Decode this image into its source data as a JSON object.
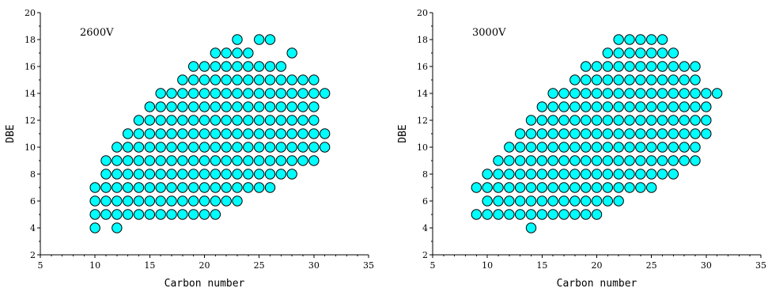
{
  "chart_data": [
    {
      "type": "scatter",
      "panel_label": "2600V",
      "xlabel": "Carbon number",
      "ylabel": "DBE",
      "xlim": [
        5,
        35
      ],
      "ylim": [
        2,
        20
      ],
      "x_ticks": [
        5,
        10,
        15,
        20,
        25,
        30,
        35
      ],
      "y_ticks": [
        2,
        4,
        6,
        8,
        10,
        12,
        14,
        16,
        18,
        20
      ],
      "marker_color": "#00FFFF",
      "rows": [
        {
          "y": 4,
          "x": [
            10,
            12
          ]
        },
        {
          "y": 5,
          "x": [
            10,
            11,
            12,
            13,
            14,
            15,
            16,
            17,
            18,
            19,
            20,
            21
          ]
        },
        {
          "y": 6,
          "x": [
            10,
            11,
            12,
            13,
            14,
            15,
            16,
            17,
            18,
            19,
            20,
            21,
            22,
            23
          ]
        },
        {
          "y": 7,
          "x": [
            10,
            11,
            12,
            13,
            14,
            15,
            16,
            17,
            18,
            19,
            20,
            21,
            22,
            23,
            24,
            25,
            26
          ]
        },
        {
          "y": 8,
          "x": [
            11,
            12,
            13,
            14,
            15,
            16,
            17,
            18,
            19,
            20,
            21,
            22,
            23,
            24,
            25,
            26,
            27,
            28
          ]
        },
        {
          "y": 9,
          "x": [
            11,
            12,
            13,
            14,
            15,
            16,
            17,
            18,
            19,
            20,
            21,
            22,
            23,
            24,
            25,
            26,
            27,
            28,
            29,
            30
          ]
        },
        {
          "y": 10,
          "x": [
            12,
            13,
            14,
            15,
            16,
            17,
            18,
            19,
            20,
            21,
            22,
            23,
            24,
            25,
            26,
            27,
            28,
            29,
            30,
            31
          ]
        },
        {
          "y": 11,
          "x": [
            13,
            14,
            15,
            16,
            17,
            18,
            19,
            20,
            21,
            22,
            23,
            24,
            25,
            26,
            27,
            28,
            29,
            30,
            31
          ]
        },
        {
          "y": 12,
          "x": [
            14,
            15,
            16,
            17,
            18,
            19,
            20,
            21,
            22,
            23,
            24,
            25,
            26,
            27,
            28,
            29,
            30
          ]
        },
        {
          "y": 13,
          "x": [
            15,
            16,
            17,
            18,
            19,
            20,
            21,
            22,
            23,
            24,
            25,
            26,
            27,
            28,
            29,
            30
          ]
        },
        {
          "y": 14,
          "x": [
            16,
            17,
            18,
            19,
            20,
            21,
            22,
            23,
            24,
            25,
            26,
            27,
            28,
            29,
            30,
            31
          ]
        },
        {
          "y": 15,
          "x": [
            18,
            19,
            20,
            21,
            22,
            23,
            24,
            25,
            26,
            27,
            28,
            29,
            30
          ]
        },
        {
          "y": 16,
          "x": [
            19,
            20,
            21,
            22,
            23,
            24,
            25,
            26,
            27
          ]
        },
        {
          "y": 17,
          "x": [
            21,
            22,
            23,
            24,
            28
          ]
        },
        {
          "y": 18,
          "x": [
            23,
            25,
            26
          ]
        }
      ]
    },
    {
      "type": "scatter",
      "panel_label": "3000V",
      "xlabel": "Carbon number",
      "ylabel": "DBE",
      "xlim": [
        5,
        35
      ],
      "ylim": [
        2,
        20
      ],
      "x_ticks": [
        5,
        10,
        15,
        20,
        25,
        30,
        35
      ],
      "y_ticks": [
        2,
        4,
        6,
        8,
        10,
        12,
        14,
        16,
        18,
        20
      ],
      "marker_color": "#00FFFF",
      "rows": [
        {
          "y": 4,
          "x": [
            14
          ]
        },
        {
          "y": 5,
          "x": [
            9,
            10,
            11,
            12,
            13,
            14,
            15,
            16,
            17,
            18,
            19,
            20
          ]
        },
        {
          "y": 6,
          "x": [
            10,
            11,
            12,
            13,
            14,
            15,
            16,
            17,
            18,
            19,
            20,
            21,
            22
          ]
        },
        {
          "y": 7,
          "x": [
            9,
            10,
            11,
            12,
            13,
            14,
            15,
            16,
            17,
            18,
            19,
            20,
            21,
            22,
            23,
            24,
            25
          ]
        },
        {
          "y": 8,
          "x": [
            10,
            11,
            12,
            13,
            14,
            15,
            16,
            17,
            18,
            19,
            20,
            21,
            22,
            23,
            24,
            25,
            26,
            27
          ]
        },
        {
          "y": 9,
          "x": [
            11,
            12,
            13,
            14,
            15,
            16,
            17,
            18,
            19,
            20,
            21,
            22,
            23,
            24,
            25,
            26,
            27,
            28,
            29
          ]
        },
        {
          "y": 10,
          "x": [
            12,
            13,
            14,
            15,
            16,
            17,
            18,
            19,
            20,
            21,
            22,
            23,
            24,
            25,
            26,
            27,
            28,
            29
          ]
        },
        {
          "y": 11,
          "x": [
            13,
            14,
            15,
            16,
            17,
            18,
            19,
            20,
            21,
            22,
            23,
            24,
            25,
            26,
            27,
            28,
            29,
            30
          ]
        },
        {
          "y": 12,
          "x": [
            14,
            15,
            16,
            17,
            18,
            19,
            20,
            21,
            22,
            23,
            24,
            25,
            26,
            27,
            28,
            29,
            30
          ]
        },
        {
          "y": 13,
          "x": [
            15,
            16,
            17,
            18,
            19,
            20,
            21,
            22,
            23,
            24,
            25,
            26,
            27,
            28,
            29,
            30
          ]
        },
        {
          "y": 14,
          "x": [
            16,
            17,
            18,
            19,
            20,
            21,
            22,
            23,
            24,
            25,
            26,
            27,
            28,
            29,
            30,
            31
          ]
        },
        {
          "y": 15,
          "x": [
            18,
            19,
            20,
            21,
            22,
            23,
            24,
            25,
            26,
            27,
            28,
            29
          ]
        },
        {
          "y": 16,
          "x": [
            19,
            20,
            21,
            22,
            23,
            24,
            25,
            26,
            27,
            28,
            29
          ]
        },
        {
          "y": 17,
          "x": [
            21,
            22,
            23,
            24,
            25,
            26,
            27
          ]
        },
        {
          "y": 18,
          "x": [
            22,
            23,
            24,
            25,
            26
          ]
        }
      ]
    }
  ]
}
